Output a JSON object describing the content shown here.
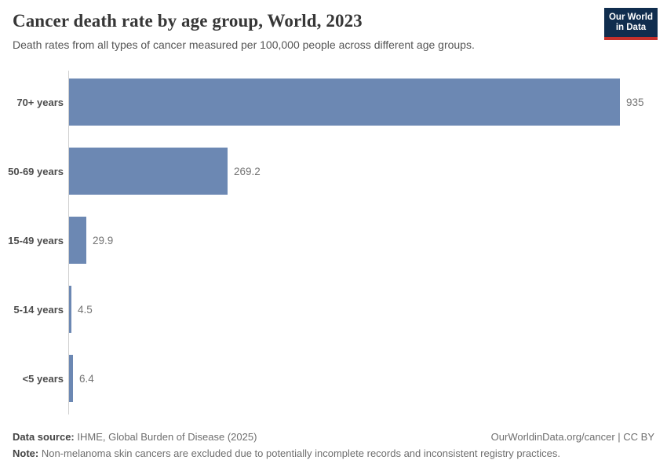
{
  "header": {
    "title": "Cancer death rate by age group, World, 2023",
    "subtitle": "Death rates from all types of cancer measured per 100,000 people across different age groups.",
    "logo": {
      "line1": "Our World",
      "line2": "in Data"
    }
  },
  "chart_data": {
    "type": "bar",
    "orientation": "horizontal",
    "title": "Cancer death rate by age group, World, 2023",
    "xlabel": "",
    "ylabel": "",
    "categories": [
      "70+ years",
      "50-69 years",
      "15-49 years",
      "5-14 years",
      "<5 years"
    ],
    "values": [
      935,
      269.2,
      29.9,
      4.5,
      6.4
    ],
    "value_labels": [
      "935",
      "269.2",
      "29.9",
      "4.5",
      "6.4"
    ],
    "xlim": [
      0,
      935
    ],
    "grid": false,
    "legend": false,
    "bar_color": "#6c88b3",
    "axis_color": "#cfcfcf"
  },
  "footer": {
    "source_label": "Data source:",
    "source_text": " IHME, Global Burden of Disease (2025)",
    "note_label": "Note:",
    "note_text": " Non-melanoma skin cancers are excluded due to potentially incomplete records and inconsistent registry practices.",
    "link": "OurWorldinData.org/cancer | CC BY"
  }
}
